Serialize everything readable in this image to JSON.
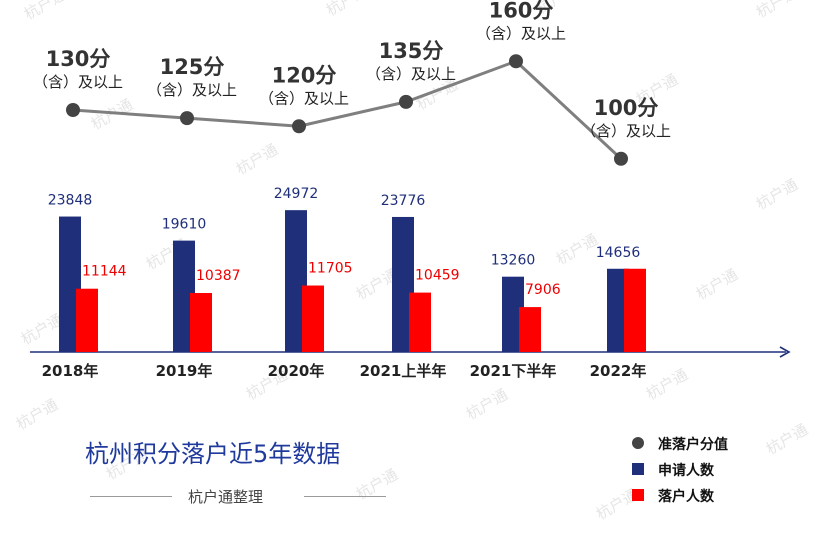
{
  "watermark": "杭户通",
  "chart_data": {
    "type": "bar",
    "title": "杭州积分落户近5年数据",
    "categories": [
      "2018年",
      "2019年",
      "2020年",
      "2021上半年",
      "2021下半年",
      "2022年"
    ],
    "series": [
      {
        "name": "申请人数",
        "type": "bar",
        "color": "#1f2f7a",
        "values": [
          23848,
          19610,
          24972,
          23776,
          13260,
          14656
        ]
      },
      {
        "name": "落户人数",
        "type": "bar",
        "color": "#ff0000",
        "values": [
          11144,
          10387,
          11705,
          10459,
          7906,
          14656
        ]
      },
      {
        "name": "准落户分值",
        "type": "line",
        "color": "#7f7f7f",
        "values": [
          130,
          125,
          120,
          135,
          160,
          100
        ]
      }
    ],
    "value_labels": {
      "apply": [
        "23848",
        "19610",
        "24972",
        "23776",
        "13260",
        "14656"
      ],
      "settle": [
        "11144",
        "10387",
        "11705",
        "10459",
        "7906",
        ""
      ]
    },
    "score_labels": [
      "130分",
      "125分",
      "120分",
      "135分",
      "160分",
      "100分"
    ],
    "score_suffix": "（含）及以上",
    "bar_max": 25000,
    "score_range": [
      90,
      170
    ],
    "legend_position": "bottom-right"
  },
  "legend": [
    {
      "label": "准落户分值",
      "color": "#444444",
      "shape": "circle"
    },
    {
      "label": "申请人数",
      "color": "#1f2f7a",
      "shape": "square"
    },
    {
      "label": "落户人数",
      "color": "#ff0000",
      "shape": "square"
    }
  ],
  "credit": "杭户通整理"
}
